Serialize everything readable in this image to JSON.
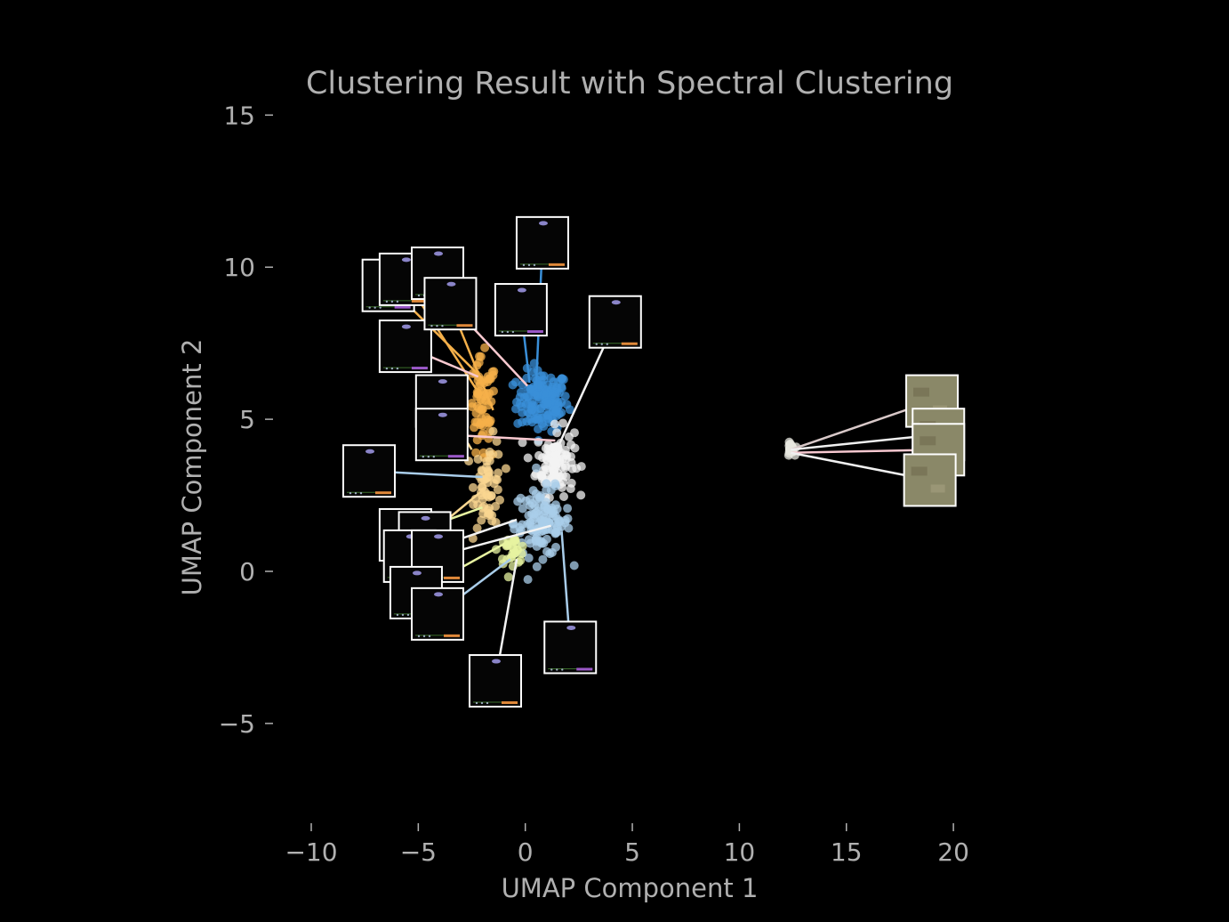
{
  "chart_data": {
    "type": "scatter",
    "title": "Clustering Result with Spectral Clustering",
    "xlabel": "UMAP Component 1",
    "ylabel": "UMAP Component 2",
    "xlim": [
      -10,
      20
    ],
    "ylim": [
      -7.5,
      15
    ],
    "x_ticks": [
      -10,
      -5,
      0,
      5,
      10,
      15,
      20
    ],
    "y_ticks": [
      -5,
      0,
      5,
      10,
      15
    ],
    "x_tick_labels": [
      "−10",
      "−5",
      "0",
      "5",
      "10",
      "15",
      "20"
    ],
    "y_tick_labels": [
      "−5",
      "0",
      "5",
      "10",
      "15"
    ],
    "grid": false,
    "background": "#000000",
    "text_color": "#b0b0b0",
    "clusters": [
      {
        "color": "#3a8fd8",
        "center": [
          0.8,
          5.6
        ],
        "spread": [
          1.1,
          0.9
        ],
        "count": 140
      },
      {
        "color": "#f3f3f3",
        "center": [
          1.4,
          3.6
        ],
        "spread": [
          0.8,
          1.0
        ],
        "count": 110
      },
      {
        "color": "#a9cdea",
        "center": [
          0.8,
          1.6
        ],
        "spread": [
          1.2,
          1.0
        ],
        "count": 120
      },
      {
        "color": "#f5b04a",
        "center": [
          -2.0,
          5.2
        ],
        "spread": [
          0.6,
          1.6
        ],
        "count": 70
      },
      {
        "color": "#f9d690",
        "center": [
          -1.7,
          2.9
        ],
        "spread": [
          0.6,
          1.3
        ],
        "count": 60
      },
      {
        "color": "#e7f3a0",
        "center": [
          -0.6,
          0.7
        ],
        "spread": [
          0.6,
          0.4
        ],
        "count": 30
      },
      {
        "color": "#e8e8e0",
        "center": [
          12.4,
          4.0
        ],
        "spread": [
          0.15,
          0.2
        ],
        "count": 25
      }
    ],
    "thumbnails": [
      {
        "anchor": [
          -1.8,
          6.2
        ],
        "image_center": [
          -6.4,
          9.4
        ],
        "line_color": "#f5b04a",
        "kind": "game"
      },
      {
        "anchor": [
          -2.3,
          6.0
        ],
        "image_center": [
          -5.6,
          9.6
        ],
        "line_color": "#f5b04a",
        "kind": "game"
      },
      {
        "anchor": [
          -1.5,
          5.3
        ],
        "image_center": [
          -4.1,
          9.8
        ],
        "line_color": "#f5b04a",
        "kind": "game"
      },
      {
        "anchor": [
          -2.2,
          6.4
        ],
        "image_center": [
          -5.6,
          7.4
        ],
        "line_color": "#f9c9d0",
        "kind": "game"
      },
      {
        "anchor": [
          0.1,
          6.1
        ],
        "image_center": [
          -3.5,
          8.8
        ],
        "line_color": "#f9c9d0",
        "kind": "game"
      },
      {
        "anchor": [
          0.5,
          6.0
        ],
        "image_center": [
          0.8,
          10.8
        ],
        "line_color": "#3a8fd8",
        "kind": "game"
      },
      {
        "anchor": [
          0.2,
          6.2
        ],
        "image_center": [
          -0.2,
          8.6
        ],
        "line_color": "#3a8fd8",
        "kind": "game"
      },
      {
        "anchor": [
          1.6,
          4.2
        ],
        "image_center": [
          4.2,
          8.2
        ],
        "line_color": "#f3f3f3",
        "kind": "game"
      },
      {
        "anchor": [
          -2.5,
          4.0
        ],
        "image_center": [
          -3.9,
          5.6
        ],
        "line_color": "#f9d690",
        "kind": "game"
      },
      {
        "anchor": [
          1.4,
          4.3
        ],
        "image_center": [
          -3.9,
          4.5
        ],
        "line_color": "#f9c9d0",
        "kind": "game"
      },
      {
        "anchor": [
          -2.0,
          3.1
        ],
        "image_center": [
          -7.3,
          3.3
        ],
        "line_color": "#a9cdea",
        "kind": "game"
      },
      {
        "anchor": [
          -2.0,
          2.1
        ],
        "image_center": [
          -5.6,
          1.2
        ],
        "line_color": "#e7f3a0",
        "kind": "game"
      },
      {
        "anchor": [
          -2.1,
          2.6
        ],
        "image_center": [
          -4.7,
          1.1
        ],
        "line_color": "#f9d690",
        "kind": "game"
      },
      {
        "anchor": [
          -0.4,
          1.7
        ],
        "image_center": [
          -5.4,
          0.5
        ],
        "line_color": "#f3f3f3",
        "kind": "game"
      },
      {
        "anchor": [
          1.2,
          1.5
        ],
        "image_center": [
          -4.1,
          0.5
        ],
        "line_color": "#f3f3f3",
        "kind": "game"
      },
      {
        "anchor": [
          -1.0,
          0.9
        ],
        "image_center": [
          -5.1,
          -0.7
        ],
        "line_color": "#e7f3a0",
        "kind": "game"
      },
      {
        "anchor": [
          -0.7,
          0.4
        ],
        "image_center": [
          -4.1,
          -1.4
        ],
        "line_color": "#a9cdea",
        "kind": "game"
      },
      {
        "anchor": [
          -0.4,
          0.4
        ],
        "image_center": [
          -1.4,
          -3.6
        ],
        "line_color": "#f3f3f3",
        "kind": "game"
      },
      {
        "anchor": [
          1.7,
          1.3
        ],
        "image_center": [
          2.1,
          -2.5
        ],
        "line_color": "#a9cdea",
        "kind": "game"
      },
      {
        "anchor": [
          12.4,
          4.0
        ],
        "image_center": [
          19.0,
          5.6
        ],
        "line_color": "#d8c8c8",
        "kind": "photo"
      },
      {
        "anchor": [
          12.4,
          4.0
        ],
        "image_center": [
          19.3,
          4.5
        ],
        "line_color": "#f0f0f0",
        "kind": "photo"
      },
      {
        "anchor": [
          12.4,
          3.9
        ],
        "image_center": [
          19.3,
          4.0
        ],
        "line_color": "#f7c8d0",
        "kind": "photo"
      },
      {
        "anchor": [
          12.4,
          3.9
        ],
        "image_center": [
          18.9,
          3.0
        ],
        "line_color": "#f0f0f0",
        "kind": "photo"
      }
    ]
  }
}
